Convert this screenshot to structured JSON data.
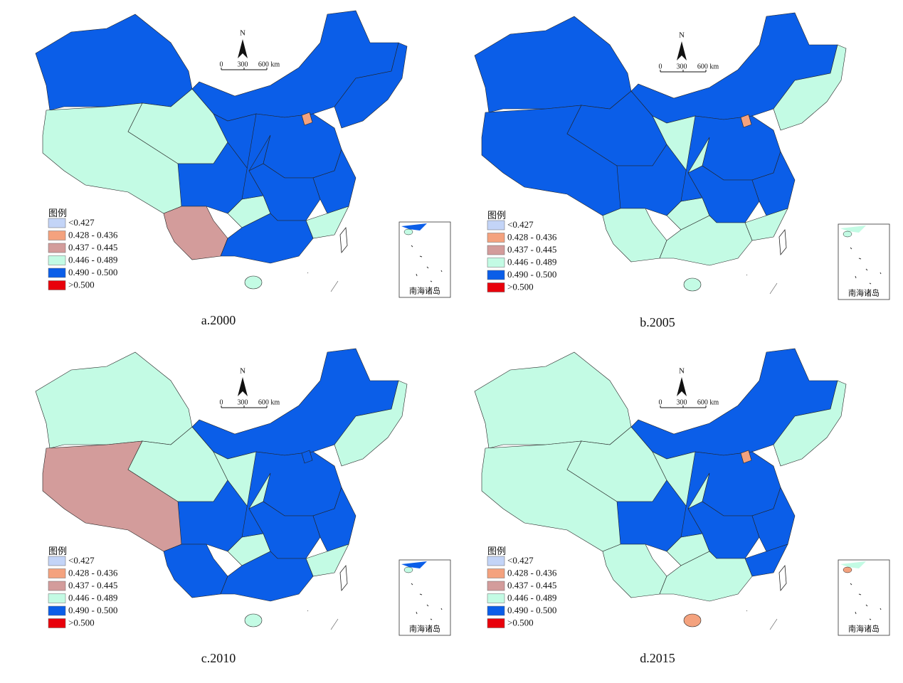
{
  "panels": [
    {
      "caption": "a.2000"
    },
    {
      "caption": "b.2005"
    },
    {
      "caption": "c.2010"
    },
    {
      "caption": "d.2015"
    }
  ],
  "legend": {
    "title": "图例",
    "items": [
      {
        "label": "<0.427",
        "color": "#c3d4f7"
      },
      {
        "label": "0.428 - 0.436",
        "color": "#f4a27e"
      },
      {
        "label": "0.437 - 0.445",
        "color": "#d39c9b"
      },
      {
        "label": "0.446 - 0.489",
        "color": "#c3fbe4"
      },
      {
        "label": "0.490 - 0.500",
        "color": "#0b5ee8"
      },
      {
        "label": ">0.500",
        "color": "#e8000b"
      }
    ]
  },
  "north": "N",
  "scale": {
    "labels": [
      "0",
      "300",
      "600 km"
    ]
  },
  "inset": "南海诸岛"
}
